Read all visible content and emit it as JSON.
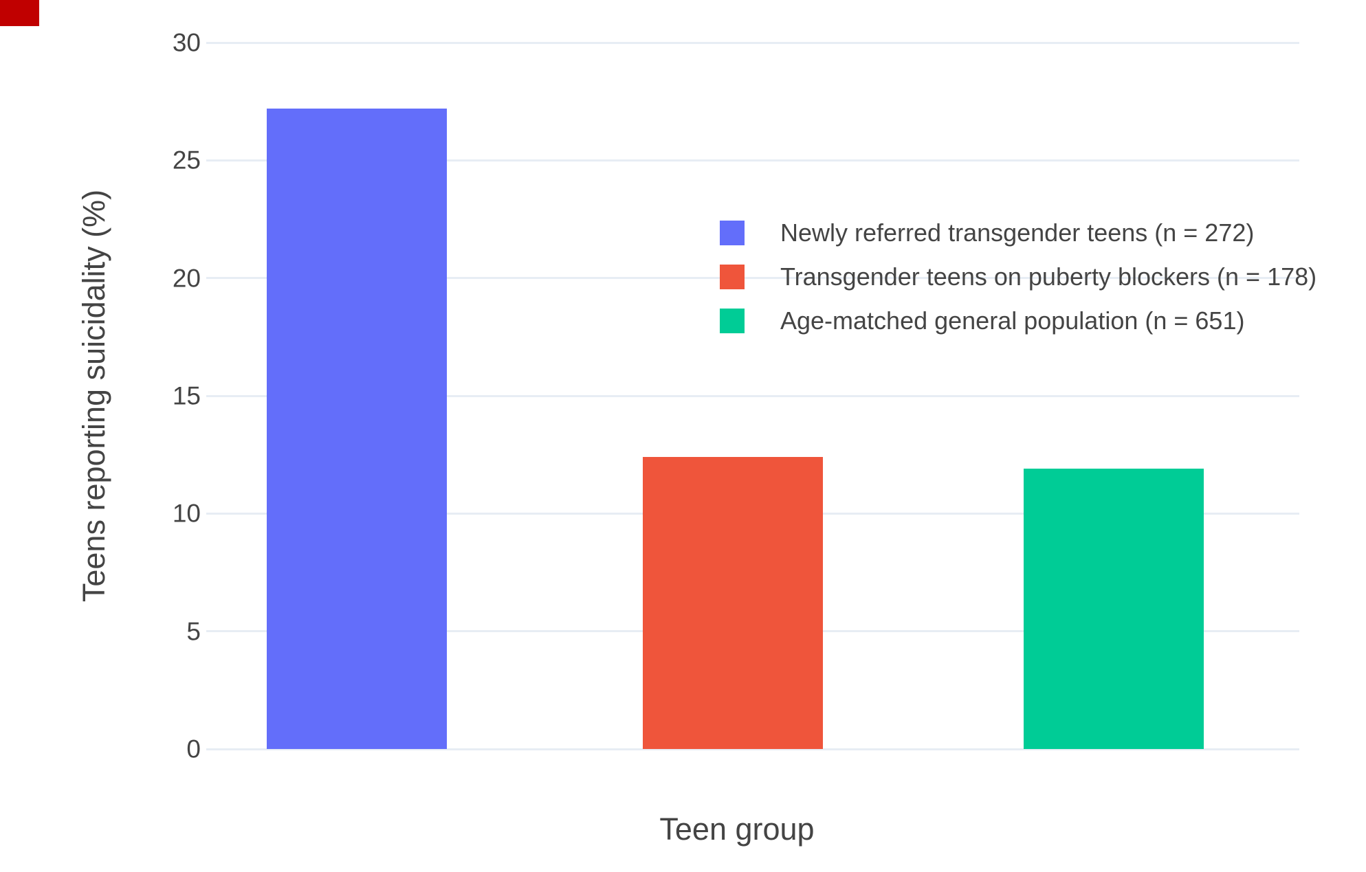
{
  "chart_data": {
    "type": "bar",
    "title": "",
    "xlabel": "Teen group",
    "ylabel": "Teens reporting suicidality (%)",
    "categories": [
      "Newly referred transgender teens (n = 272)",
      "Transgender teens on puberty blockers (n = 178)",
      "Age-matched general population (n = 651)"
    ],
    "series": [
      {
        "name": "Newly referred transgender teens (n = 272)",
        "value": 27.2,
        "color": "#636EFA"
      },
      {
        "name": "Transgender teens on puberty blockers (n = 178)",
        "value": 12.4,
        "color": "#EF553B"
      },
      {
        "name": "Age-matched general population (n = 651)",
        "value": 11.9,
        "color": "#00CC96"
      }
    ],
    "yticks": [
      0,
      5,
      10,
      15,
      20,
      25,
      30
    ],
    "ylim": [
      0,
      30
    ],
    "grid": true,
    "grid_color": "#E7EDF4",
    "background_color": "#FFFFFF",
    "text_color": "#444444",
    "legend_position": "inside-top-center",
    "x_tick_labels": []
  },
  "artifacts": {
    "corner_marker_color": "#C00000"
  }
}
